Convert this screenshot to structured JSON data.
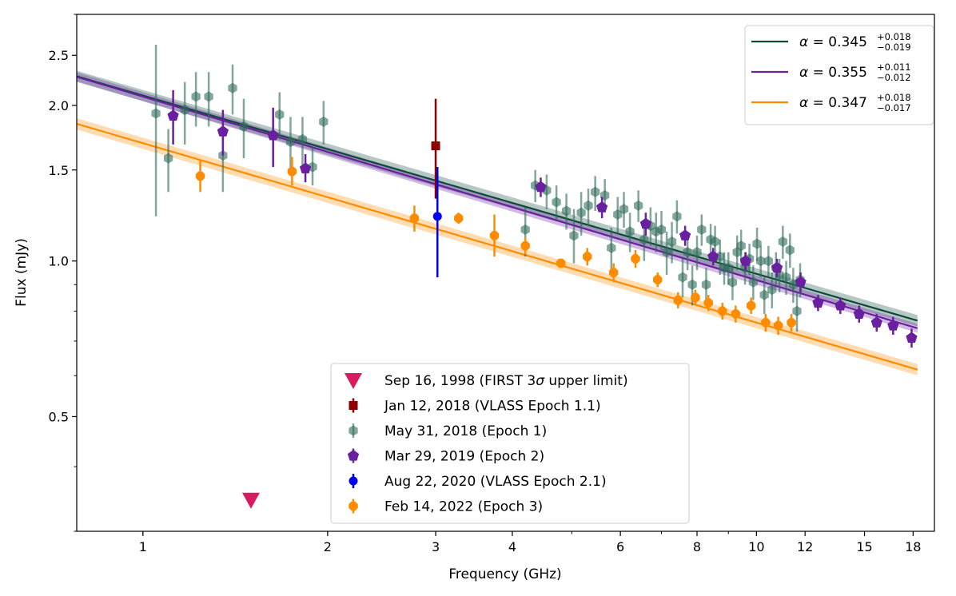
{
  "chart_data": {
    "type": "scatter",
    "xlabel": "Frequency (GHz)",
    "ylabel": "Flux (mJy)",
    "xscale": "log",
    "yscale": "log",
    "xlim": [
      0.78,
      19.5
    ],
    "ylim": [
      0.3,
      3.0
    ],
    "x_ticks": [
      {
        "value": 1,
        "label": "1"
      },
      {
        "value": 2,
        "label": "2"
      },
      {
        "value": 3,
        "label": "3"
      },
      {
        "value": 4,
        "label": "4"
      },
      {
        "value": 6,
        "label": "6"
      },
      {
        "value": 8,
        "label": "8"
      },
      {
        "value": 10,
        "label": "10"
      },
      {
        "value": 12,
        "label": "12"
      },
      {
        "value": 15,
        "label": "15"
      },
      {
        "value": 18,
        "label": "18"
      }
    ],
    "y_ticks": [
      {
        "value": 0.5,
        "label": "0.5"
      },
      {
        "value": 1.0,
        "label": "1.0"
      },
      {
        "value": 1.5,
        "label": "1.5"
      },
      {
        "value": 2.0,
        "label": "2.0"
      },
      {
        "value": 2.5,
        "label": "2.5"
      }
    ],
    "fits": [
      {
        "name": "epoch1-fit",
        "color": "#0d4a3a",
        "alpha_value": "0.345",
        "alpha_plus": "+0.018",
        "alpha_minus": "−0.019",
        "alpha": 0.345,
        "norm_1ghz": 2.09,
        "band_frac": 0.025,
        "xrange": [
          0.78,
          18.3
        ]
      },
      {
        "name": "epoch2-fit",
        "color": "#6a1fa0",
        "alpha_value": "0.355",
        "alpha_plus": "+0.011",
        "alpha_minus": "−0.012",
        "alpha": 0.355,
        "norm_1ghz": 2.08,
        "band_frac": 0.02,
        "xrange": [
          0.78,
          18.3
        ]
      },
      {
        "name": "epoch3-fit",
        "color": "#ff8c00",
        "alpha_value": "0.347",
        "alpha_plus": "+0.018",
        "alpha_minus": "−0.017",
        "alpha": 0.347,
        "norm_1ghz": 1.69,
        "band_frac": 0.025,
        "xrange": [
          0.78,
          18.3
        ]
      }
    ],
    "fit_legend_prefix": "α = ",
    "series": [
      {
        "name": "Sep 16, 1998 (FIRST 3σ upper limit)",
        "marker": "triangle-down",
        "color": "#d81b60",
        "opacity": 1,
        "points": [
          {
            "x": 1.5,
            "y": 0.345
          }
        ]
      },
      {
        "name": "Jan 12, 2018 (VLASS Epoch 1.1)",
        "marker": "square",
        "color": "#8b0000",
        "opacity": 1,
        "points": [
          {
            "x": 3.0,
            "y": 1.67,
            "lo": 1.32,
            "hi": 2.06
          }
        ]
      },
      {
        "name": "May 31, 2018 (Epoch 1)",
        "marker": "hexagon",
        "color": "#2e6b5a",
        "opacity": 0.6,
        "points": [
          {
            "x": 1.05,
            "y": 1.93,
            "lo": 1.22,
            "hi": 2.62
          },
          {
            "x": 1.1,
            "y": 1.58,
            "lo": 1.36,
            "hi": 1.8
          },
          {
            "x": 1.17,
            "y": 1.96,
            "lo": 1.68,
            "hi": 2.22
          },
          {
            "x": 1.22,
            "y": 2.08,
            "lo": 1.82,
            "hi": 2.32
          },
          {
            "x": 1.28,
            "y": 2.08,
            "lo": 1.82,
            "hi": 2.32
          },
          {
            "x": 1.35,
            "y": 1.6,
            "lo": 1.36,
            "hi": 1.82
          },
          {
            "x": 1.4,
            "y": 2.16,
            "lo": 1.92,
            "hi": 2.4
          },
          {
            "x": 1.46,
            "y": 1.82,
            "lo": 1.58,
            "hi": 2.06
          },
          {
            "x": 1.67,
            "y": 1.92,
            "lo": 1.72,
            "hi": 2.12
          },
          {
            "x": 1.74,
            "y": 1.7,
            "lo": 1.5,
            "hi": 1.9
          },
          {
            "x": 1.82,
            "y": 1.72,
            "lo": 1.52,
            "hi": 1.9
          },
          {
            "x": 1.89,
            "y": 1.52,
            "lo": 1.4,
            "hi": 1.66
          },
          {
            "x": 1.97,
            "y": 1.86,
            "lo": 1.68,
            "hi": 2.04
          },
          {
            "x": 4.2,
            "y": 1.15,
            "lo": 1.02,
            "hi": 1.27
          },
          {
            "x": 4.36,
            "y": 1.4,
            "lo": 1.3,
            "hi": 1.5
          },
          {
            "x": 4.55,
            "y": 1.37,
            "lo": 1.26,
            "hi": 1.47
          },
          {
            "x": 4.72,
            "y": 1.3,
            "lo": 1.2,
            "hi": 1.4
          },
          {
            "x": 4.9,
            "y": 1.25,
            "lo": 1.15,
            "hi": 1.35
          },
          {
            "x": 5.04,
            "y": 1.12,
            "lo": 0.99,
            "hi": 1.26
          },
          {
            "x": 5.18,
            "y": 1.24,
            "lo": 1.12,
            "hi": 1.36
          },
          {
            "x": 5.32,
            "y": 1.28,
            "lo": 1.17,
            "hi": 1.38
          },
          {
            "x": 5.46,
            "y": 1.36,
            "lo": 1.25,
            "hi": 1.46
          },
          {
            "x": 5.66,
            "y": 1.34,
            "lo": 1.24,
            "hi": 1.44
          },
          {
            "x": 5.8,
            "y": 1.06,
            "lo": 0.96,
            "hi": 1.16
          },
          {
            "x": 5.94,
            "y": 1.23,
            "lo": 1.13,
            "hi": 1.33
          },
          {
            "x": 6.08,
            "y": 1.26,
            "lo": 1.16,
            "hi": 1.36
          },
          {
            "x": 6.22,
            "y": 1.14,
            "lo": 1.04,
            "hi": 1.24
          },
          {
            "x": 6.42,
            "y": 1.28,
            "lo": 1.19,
            "hi": 1.37
          },
          {
            "x": 6.56,
            "y": 1.1,
            "lo": 1.0,
            "hi": 1.2
          },
          {
            "x": 6.72,
            "y": 1.17,
            "lo": 1.07,
            "hi": 1.27
          },
          {
            "x": 6.86,
            "y": 1.14,
            "lo": 1.04,
            "hi": 1.24
          },
          {
            "x": 7.0,
            "y": 1.15,
            "lo": 1.05,
            "hi": 1.25
          },
          {
            "x": 7.14,
            "y": 1.04,
            "lo": 0.94,
            "hi": 1.14
          },
          {
            "x": 7.28,
            "y": 1.09,
            "lo": 0.99,
            "hi": 1.19
          },
          {
            "x": 7.42,
            "y": 1.22,
            "lo": 1.13,
            "hi": 1.31
          },
          {
            "x": 7.58,
            "y": 0.93,
            "lo": 0.85,
            "hi": 1.01
          },
          {
            "x": 7.72,
            "y": 1.04,
            "lo": 0.96,
            "hi": 1.12
          },
          {
            "x": 7.86,
            "y": 0.9,
            "lo": 0.82,
            "hi": 0.98
          },
          {
            "x": 8.0,
            "y": 1.04,
            "lo": 0.96,
            "hi": 1.12
          },
          {
            "x": 8.14,
            "y": 1.15,
            "lo": 1.07,
            "hi": 1.23
          },
          {
            "x": 8.28,
            "y": 0.9,
            "lo": 0.83,
            "hi": 0.97
          },
          {
            "x": 8.42,
            "y": 1.1,
            "lo": 1.02,
            "hi": 1.18
          },
          {
            "x": 8.56,
            "y": 1.09,
            "lo": 1.01,
            "hi": 1.17
          },
          {
            "x": 8.72,
            "y": 1.02,
            "lo": 0.94,
            "hi": 1.1
          },
          {
            "x": 8.86,
            "y": 0.97,
            "lo": 0.9,
            "hi": 1.04
          },
          {
            "x": 9.0,
            "y": 0.97,
            "lo": 0.9,
            "hi": 1.04
          },
          {
            "x": 9.14,
            "y": 0.91,
            "lo": 0.84,
            "hi": 0.98
          },
          {
            "x": 9.3,
            "y": 1.04,
            "lo": 0.96,
            "hi": 1.12
          },
          {
            "x": 9.44,
            "y": 1.07,
            "lo": 0.99,
            "hi": 1.15
          },
          {
            "x": 9.58,
            "y": 0.97,
            "lo": 0.9,
            "hi": 1.04
          },
          {
            "x": 9.74,
            "y": 1.01,
            "lo": 0.94,
            "hi": 1.08
          },
          {
            "x": 9.88,
            "y": 0.91,
            "lo": 0.84,
            "hi": 0.98
          },
          {
            "x": 10.02,
            "y": 1.08,
            "lo": 1.0,
            "hi": 1.16
          },
          {
            "x": 10.16,
            "y": 1.0,
            "lo": 0.93,
            "hi": 1.07
          },
          {
            "x": 10.3,
            "y": 0.86,
            "lo": 0.79,
            "hi": 0.93
          },
          {
            "x": 10.46,
            "y": 1.0,
            "lo": 0.93,
            "hi": 1.07
          },
          {
            "x": 10.6,
            "y": 0.88,
            "lo": 0.81,
            "hi": 0.95
          },
          {
            "x": 10.76,
            "y": 0.97,
            "lo": 0.9,
            "hi": 1.04
          },
          {
            "x": 10.9,
            "y": 0.94,
            "lo": 0.87,
            "hi": 1.01
          },
          {
            "x": 11.04,
            "y": 1.09,
            "lo": 1.01,
            "hi": 1.17
          },
          {
            "x": 11.18,
            "y": 0.93,
            "lo": 0.86,
            "hi": 1.0
          },
          {
            "x": 11.34,
            "y": 1.05,
            "lo": 0.97,
            "hi": 1.13
          },
          {
            "x": 11.48,
            "y": 0.9,
            "lo": 0.83,
            "hi": 0.97
          },
          {
            "x": 11.64,
            "y": 0.8,
            "lo": 0.73,
            "hi": 0.87
          },
          {
            "x": 11.78,
            "y": 0.92,
            "lo": 0.85,
            "hi": 0.99
          }
        ]
      },
      {
        "name": "Mar 29, 2019 (Epoch 2)",
        "marker": "pentagon",
        "color": "#6a1fa0",
        "opacity": 1,
        "points": [
          {
            "x": 1.12,
            "y": 1.91,
            "lo": 1.68,
            "hi": 2.14
          },
          {
            "x": 1.35,
            "y": 1.78,
            "lo": 1.6,
            "hi": 1.96
          },
          {
            "x": 1.63,
            "y": 1.75,
            "lo": 1.52,
            "hi": 1.98
          },
          {
            "x": 1.84,
            "y": 1.51,
            "lo": 1.42,
            "hi": 1.61
          },
          {
            "x": 4.45,
            "y": 1.39,
            "lo": 1.33,
            "hi": 1.45
          },
          {
            "x": 5.6,
            "y": 1.27,
            "lo": 1.21,
            "hi": 1.33
          },
          {
            "x": 6.6,
            "y": 1.18,
            "lo": 1.12,
            "hi": 1.24
          },
          {
            "x": 7.65,
            "y": 1.12,
            "lo": 1.07,
            "hi": 1.17
          },
          {
            "x": 8.5,
            "y": 1.02,
            "lo": 0.98,
            "hi": 1.06
          },
          {
            "x": 9.6,
            "y": 1.0,
            "lo": 0.96,
            "hi": 1.04
          },
          {
            "x": 10.8,
            "y": 0.97,
            "lo": 0.93,
            "hi": 1.01
          },
          {
            "x": 11.8,
            "y": 0.91,
            "lo": 0.87,
            "hi": 0.95
          },
          {
            "x": 12.6,
            "y": 0.83,
            "lo": 0.8,
            "hi": 0.86
          },
          {
            "x": 13.7,
            "y": 0.82,
            "lo": 0.79,
            "hi": 0.85
          },
          {
            "x": 14.7,
            "y": 0.79,
            "lo": 0.76,
            "hi": 0.82
          },
          {
            "x": 15.7,
            "y": 0.76,
            "lo": 0.73,
            "hi": 0.79
          },
          {
            "x": 16.7,
            "y": 0.75,
            "lo": 0.72,
            "hi": 0.78
          },
          {
            "x": 17.9,
            "y": 0.71,
            "lo": 0.68,
            "hi": 0.74
          }
        ]
      },
      {
        "name": "Aug 22, 2020 (VLASS Epoch 2.1)",
        "marker": "circle",
        "color": "#0000ee",
        "opacity": 1,
        "points": [
          {
            "x": 3.02,
            "y": 1.22,
            "lo": 0.93,
            "hi": 1.52
          }
        ]
      },
      {
        "name": "Feb 14, 2022 (Epoch 3)",
        "marker": "octagon",
        "color": "#ff8c00",
        "opacity": 1,
        "points": [
          {
            "x": 1.24,
            "y": 1.46,
            "lo": 1.36,
            "hi": 1.57
          },
          {
            "x": 1.75,
            "y": 1.49,
            "lo": 1.4,
            "hi": 1.59
          },
          {
            "x": 2.77,
            "y": 1.21,
            "lo": 1.14,
            "hi": 1.28
          },
          {
            "x": 3.27,
            "y": 1.21,
            "lo": 1.18,
            "hi": 1.24
          },
          {
            "x": 3.74,
            "y": 1.12,
            "lo": 1.02,
            "hi": 1.23
          },
          {
            "x": 4.2,
            "y": 1.07,
            "lo": 1.03,
            "hi": 1.11
          },
          {
            "x": 4.8,
            "y": 0.99,
            "lo": 0.97,
            "hi": 1.01
          },
          {
            "x": 5.3,
            "y": 1.02,
            "lo": 0.98,
            "hi": 1.06
          },
          {
            "x": 5.85,
            "y": 0.95,
            "lo": 0.91,
            "hi": 0.99
          },
          {
            "x": 6.35,
            "y": 1.01,
            "lo": 0.97,
            "hi": 1.05
          },
          {
            "x": 6.9,
            "y": 0.92,
            "lo": 0.89,
            "hi": 0.95
          },
          {
            "x": 7.45,
            "y": 0.84,
            "lo": 0.81,
            "hi": 0.87
          },
          {
            "x": 7.95,
            "y": 0.85,
            "lo": 0.82,
            "hi": 0.88
          },
          {
            "x": 8.35,
            "y": 0.83,
            "lo": 0.8,
            "hi": 0.86
          },
          {
            "x": 8.8,
            "y": 0.8,
            "lo": 0.77,
            "hi": 0.83
          },
          {
            "x": 9.25,
            "y": 0.79,
            "lo": 0.76,
            "hi": 0.82
          },
          {
            "x": 9.8,
            "y": 0.82,
            "lo": 0.79,
            "hi": 0.85
          },
          {
            "x": 10.35,
            "y": 0.76,
            "lo": 0.73,
            "hi": 0.79
          },
          {
            "x": 10.85,
            "y": 0.75,
            "lo": 0.72,
            "hi": 0.78
          },
          {
            "x": 11.4,
            "y": 0.76,
            "lo": 0.73,
            "hi": 0.79
          }
        ]
      }
    ]
  }
}
